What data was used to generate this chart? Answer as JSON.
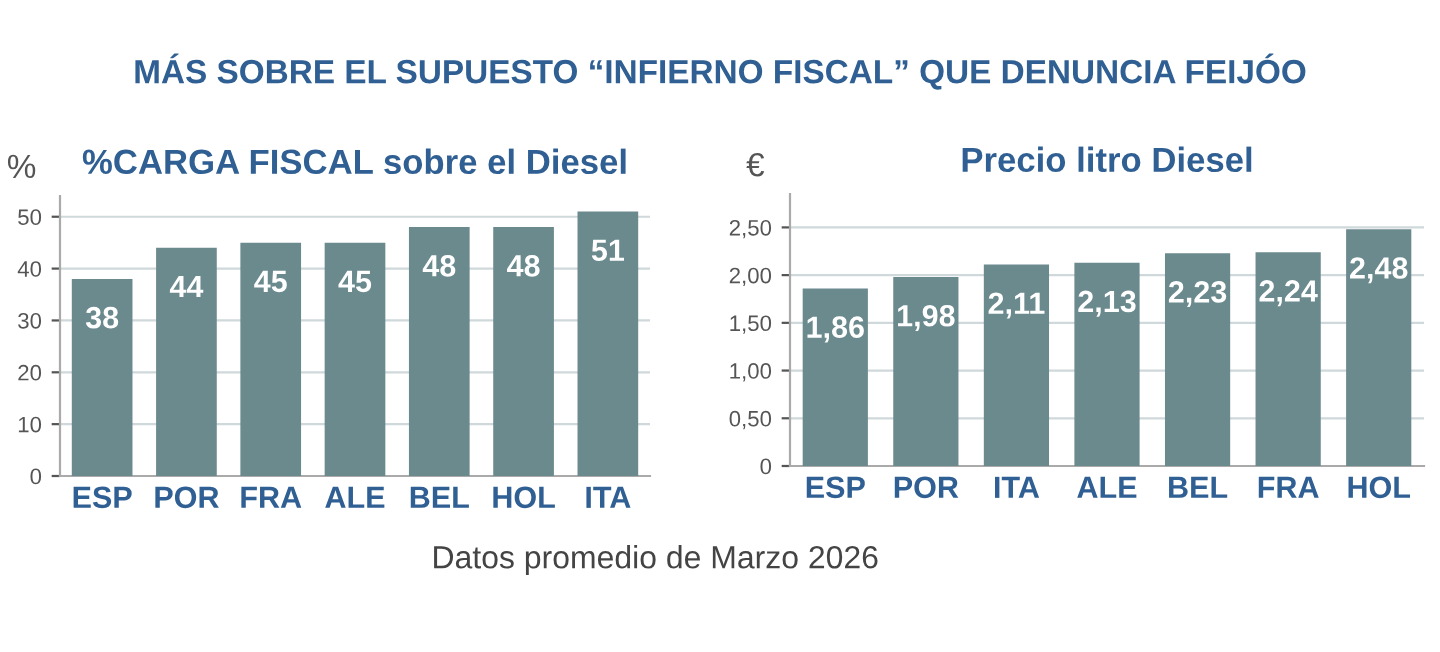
{
  "chart_data": [
    {
      "type": "bar",
      "title": "%CARGA FISCAL sobre el Diesel",
      "ylabel": "%",
      "annotations": [
        "MÁS SOBRE EL SUPUESTO “INFIERNO FISCAL” QUE DENUNCIA FEIJÓO",
        "Datos promedio de Marzo 2026"
      ],
      "categories": [
        "ESP",
        "POR",
        "FRA",
        "ALE",
        "BEL",
        "HOL",
        "ITA"
      ],
      "values": [
        38,
        44,
        45,
        45,
        48,
        48,
        51
      ],
      "color": "#6b8a8e",
      "ylim": [
        0,
        54
      ],
      "yticks": [
        0,
        10,
        20,
        30,
        40,
        50
      ],
      "grid": "y",
      "data_labels": true
    },
    {
      "type": "bar",
      "title": "Precio litro Diesel",
      "ylabel": "€",
      "categories": [
        "ESP",
        "POR",
        "ITA",
        "ALE",
        "BEL",
        "FRA",
        "HOL"
      ],
      "values": [
        1.86,
        1.98,
        2.11,
        2.13,
        2.23,
        2.24,
        2.48
      ],
      "color": "#6b8a8e",
      "value_labels": [
        "1,86",
        "1,98",
        "2,11",
        "2,13",
        "2,23",
        "2,24",
        "2,48"
      ],
      "ylim": [
        0,
        2.85
      ],
      "yticks": [
        {
          "value": 0,
          "label": "0"
        },
        {
          "value": 0.5,
          "label": "0,50"
        },
        {
          "value": 1.0,
          "label": "1,00"
        },
        {
          "value": 1.5,
          "label": "1,50"
        },
        {
          "value": 2.0,
          "label": "2,00"
        },
        {
          "value": 2.5,
          "label": "2,50"
        }
      ],
      "grid": "y"
    }
  ]
}
